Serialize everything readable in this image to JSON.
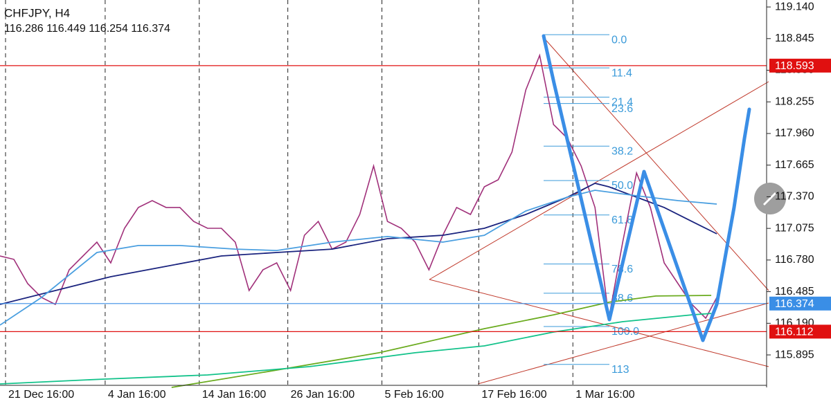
{
  "chart_data": {
    "type": "line",
    "title": "CHFJPY, H4",
    "subtitle": "116.286 116.449 116.254 116.374",
    "xlim": [
      0,
      277
    ],
    "xticks": [
      {
        "value": 2,
        "label": "21 Dec 16:00"
      },
      {
        "value": 38,
        "label": "4 Jan 16:00"
      },
      {
        "value": 72,
        "label": "14 Jan 16:00"
      },
      {
        "value": 104,
        "label": "26 Jan 16:00"
      },
      {
        "value": 138,
        "label": "5 Feb 16:00"
      },
      {
        "value": 173,
        "label": "17 Feb 16:00"
      },
      {
        "value": 207,
        "label": "1 Mar 16:00"
      }
    ],
    "ylim": [
      115.592,
      119.205
    ],
    "yticks": [
      {
        "value": 119.14,
        "label": "119.140"
      },
      {
        "value": 118.845,
        "label": "118.845"
      },
      {
        "value": 118.55,
        "label": "118.550"
      },
      {
        "value": 118.255,
        "label": "118.255"
      },
      {
        "value": 117.96,
        "label": "117.960"
      },
      {
        "value": 117.665,
        "label": "117.665"
      },
      {
        "value": 117.37,
        "label": "117.370"
      },
      {
        "value": 117.075,
        "label": "117.075"
      },
      {
        "value": 116.78,
        "label": "116.780"
      },
      {
        "value": 116.485,
        "label": "116.485"
      },
      {
        "value": 116.19,
        "label": "116.190"
      },
      {
        "value": 115.895,
        "label": "115.895"
      }
    ],
    "series": [
      {
        "color": "#a0307a",
        "x": [
          0,
          5,
          10,
          15,
          20,
          25,
          30,
          35,
          40,
          45,
          50,
          55,
          60,
          65,
          70,
          75,
          80,
          85,
          90,
          95,
          100,
          105,
          110,
          115,
          120,
          125,
          130,
          135,
          140,
          145,
          150,
          155,
          160,
          165,
          170,
          175,
          180,
          185,
          190,
          195,
          200,
          205,
          210,
          215,
          220,
          225,
          230,
          235,
          240,
          245,
          250,
          255,
          259
        ],
        "values": [
          116.818,
          116.786,
          116.56,
          116.431,
          116.366,
          116.689,
          116.818,
          116.947,
          116.753,
          117.076,
          117.27,
          117.334,
          117.27,
          117.27,
          117.14,
          117.076,
          117.076,
          116.947,
          116.495,
          116.689,
          116.753,
          116.495,
          117.011,
          117.14,
          116.882,
          116.947,
          117.205,
          117.657,
          117.14,
          117.076,
          116.947,
          116.689,
          117.011,
          117.27,
          117.205,
          117.463,
          117.528,
          117.786,
          118.366,
          118.689,
          118.044,
          117.915,
          117.657,
          117.27,
          116.237,
          116.947,
          117.592,
          117.27,
          116.753,
          116.56,
          116.366,
          116.237,
          116.431
        ]
      },
      {
        "color": "#1a237e",
        "x": [
          0,
          20,
          40,
          60,
          80,
          100,
          120,
          140,
          160,
          175,
          190,
          205,
          215,
          220,
          230,
          240,
          250,
          259
        ],
        "values": [
          116.366,
          116.495,
          116.624,
          116.721,
          116.818,
          116.85,
          116.882,
          116.979,
          117.011,
          117.076,
          117.205,
          117.366,
          117.495,
          117.463,
          117.366,
          117.27,
          117.14,
          117.024
        ]
      },
      {
        "color": "#4a9fe0",
        "x": [
          0,
          15,
          35,
          50,
          65,
          85,
          100,
          120,
          140,
          160,
          175,
          190,
          205,
          215,
          230,
          245,
          259
        ],
        "values": [
          116.173,
          116.431,
          116.85,
          116.915,
          116.915,
          116.882,
          116.869,
          116.947,
          116.999,
          116.947,
          117.011,
          117.237,
          117.366,
          117.431,
          117.379,
          117.334,
          117.302
        ]
      },
      {
        "color": "#6aab1e",
        "x": [
          62,
          100,
          137,
          175,
          200,
          220,
          237,
          257
        ],
        "values": [
          115.592,
          115.753,
          115.915,
          116.14,
          116.269,
          116.386,
          116.444,
          116.45
        ]
      },
      {
        "color": "#12c28a",
        "x": [
          0,
          37,
          75,
          112,
          150,
          175,
          200,
          225,
          250,
          257
        ],
        "values": [
          115.624,
          115.669,
          115.708,
          115.786,
          115.915,
          115.979,
          116.108,
          116.205,
          116.269,
          116.282
        ]
      }
    ],
    "price_lines": [
      {
        "value": 118.593,
        "color": "#e01010"
      },
      {
        "value": 116.374,
        "color": "#3a8ee6"
      },
      {
        "value": 116.112,
        "color": "#e01010"
      }
    ],
    "fibonacci": {
      "high": 118.882,
      "low": 116.16,
      "color": "#3a9ad9",
      "levels": [
        {
          "value": 0,
          "label": "0.0"
        },
        {
          "value": 11.4,
          "label": "11.4"
        },
        {
          "value": 21.4,
          "label": "21.4"
        },
        {
          "value": 23.6,
          "label": "23.6"
        },
        {
          "value": 38.2,
          "label": "38.2"
        },
        {
          "value": 50,
          "label": "50.0"
        },
        {
          "value": 61.8,
          "label": "61.8"
        },
        {
          "value": 78.6,
          "label": "78.6"
        },
        {
          "value": 88.6,
          "label": "88.6"
        },
        {
          "value": 100,
          "label": "100.0"
        },
        {
          "value": 113,
          "label": "113"
        }
      ]
    }
  }
}
